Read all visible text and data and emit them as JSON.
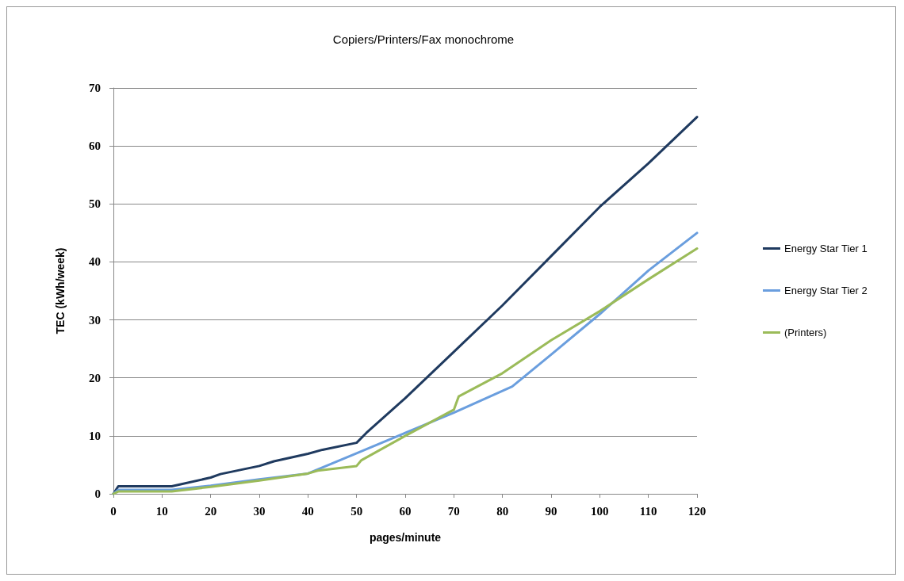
{
  "chart_data": {
    "type": "line",
    "title": "Copiers/Printers/Fax monochrome",
    "xlabel": "pages/minute",
    "ylabel": "TEC (kWh/week)",
    "xlim": [
      0,
      120
    ],
    "xticks": [
      0,
      10,
      20,
      30,
      40,
      50,
      60,
      70,
      80,
      90,
      100,
      110,
      120
    ],
    "ylim": [
      0,
      70
    ],
    "yticks": [
      0,
      10,
      20,
      30,
      40,
      50,
      60,
      70
    ],
    "grid": "y",
    "legend": "right",
    "marker": "none",
    "line_style": "solid",
    "series": [
      {
        "name": "Energy Star Tier 1",
        "color": "#1f3a5f",
        "x": [
          0,
          1,
          12,
          20,
          22,
          30,
          33,
          40,
          43,
          50,
          52,
          60,
          70,
          80,
          90,
          100,
          110,
          120
        ],
        "values": [
          0,
          1.3,
          1.3,
          2.8,
          3.4,
          4.8,
          5.6,
          6.9,
          7.6,
          8.8,
          10.5,
          16.5,
          24.5,
          32.5,
          41,
          49.5,
          57,
          65
        ]
      },
      {
        "name": "Energy Star Tier 2",
        "color": "#6a9ede",
        "x": [
          0,
          1,
          12,
          20,
          30,
          40,
          50,
          60,
          70,
          82,
          90,
          100,
          110,
          120
        ],
        "values": [
          0,
          0.7,
          0.7,
          1.4,
          2.5,
          3.5,
          7,
          10.5,
          14,
          18.5,
          24,
          31,
          38.5,
          45
        ]
      },
      {
        "name": "(Printers)",
        "color": "#9bbb59",
        "x": [
          0,
          1,
          12,
          20,
          30,
          40,
          42,
          50,
          51,
          60,
          70,
          71,
          80,
          90,
          100,
          110,
          120
        ],
        "values": [
          0,
          0.4,
          0.4,
          1.2,
          2.3,
          3.5,
          4,
          4.8,
          5.8,
          10,
          14.5,
          16.8,
          20.8,
          26.5,
          31.5,
          37,
          42.3
        ]
      }
    ]
  }
}
